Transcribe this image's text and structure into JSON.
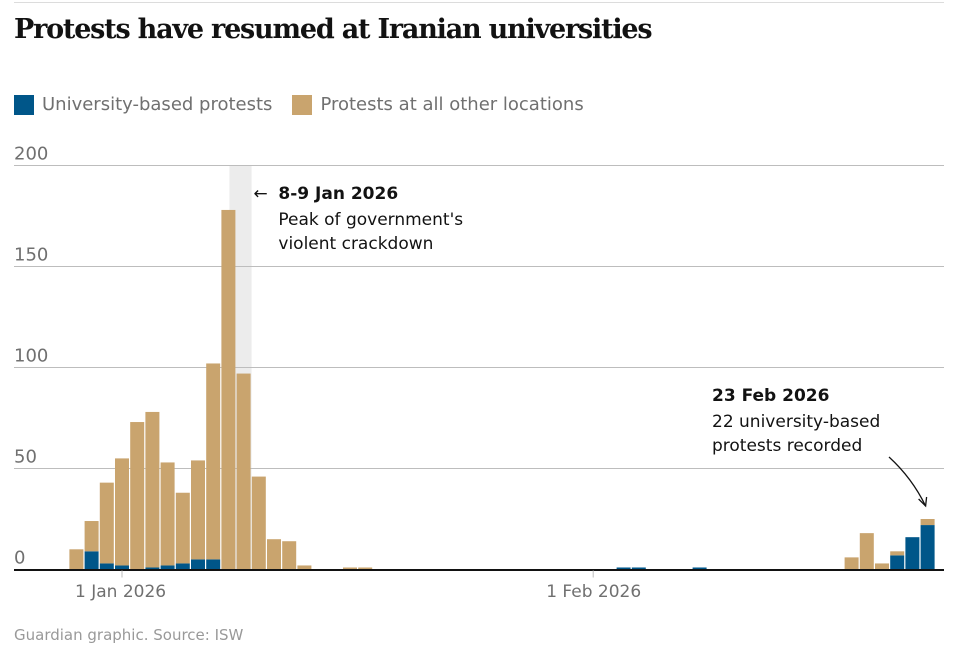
{
  "title": "Protests have resumed at Iranian universities",
  "legend": [
    {
      "key": "university",
      "label": "University-based protests",
      "color": "#005689"
    },
    {
      "key": "other",
      "label": "Protests at all other locations",
      "color": "#c9a46e"
    }
  ],
  "source": "Guardian graphic. Source: ISW",
  "chart_data": {
    "type": "bar",
    "stacked": true,
    "title": "Protests have resumed at Iranian universities",
    "xlabel": "",
    "ylabel": "",
    "ylim": [
      0,
      200
    ],
    "yticks": [
      0,
      50,
      100,
      150,
      200
    ],
    "grid": true,
    "legend_position": "top-left",
    "x_range": [
      "29 Dec 2025",
      "23 Feb 2026"
    ],
    "xticks": [
      {
        "date": "2026-01-01",
        "label": "1 Jan 2026"
      },
      {
        "date": "2026-02-01",
        "label": "1 Feb 2026"
      }
    ],
    "highlight": {
      "dates": [
        "2026-01-08",
        "2026-01-09"
      ],
      "color": "#ececec"
    },
    "series": [
      {
        "name": "University-based protests",
        "color": "#005689"
      },
      {
        "name": "Protests at all other locations",
        "color": "#c9a46e"
      }
    ],
    "points": [
      {
        "date": "2025-12-29",
        "university": 0,
        "other": 10
      },
      {
        "date": "2025-12-30",
        "university": 9,
        "other": 15
      },
      {
        "date": "2025-12-31",
        "university": 3,
        "other": 40
      },
      {
        "date": "2026-01-01",
        "university": 2,
        "other": 53
      },
      {
        "date": "2026-01-02",
        "university": 0,
        "other": 73
      },
      {
        "date": "2026-01-03",
        "university": 1,
        "other": 77
      },
      {
        "date": "2026-01-04",
        "university": 2,
        "other": 51
      },
      {
        "date": "2026-01-05",
        "university": 3,
        "other": 35
      },
      {
        "date": "2026-01-06",
        "university": 5,
        "other": 49
      },
      {
        "date": "2026-01-07",
        "university": 5,
        "other": 97
      },
      {
        "date": "2026-01-08",
        "university": 0,
        "other": 178
      },
      {
        "date": "2026-01-09",
        "university": 0,
        "other": 97
      },
      {
        "date": "2026-01-10",
        "university": 0,
        "other": 46
      },
      {
        "date": "2026-01-11",
        "university": 0,
        "other": 15
      },
      {
        "date": "2026-01-12",
        "university": 0,
        "other": 14
      },
      {
        "date": "2026-01-13",
        "university": 0,
        "other": 2
      },
      {
        "date": "2026-01-16",
        "university": 0,
        "other": 1
      },
      {
        "date": "2026-01-17",
        "university": 0,
        "other": 1
      },
      {
        "date": "2026-02-03",
        "university": 1,
        "other": 0
      },
      {
        "date": "2026-02-04",
        "university": 1,
        "other": 0
      },
      {
        "date": "2026-02-08",
        "university": 1,
        "other": 0
      },
      {
        "date": "2026-02-18",
        "university": 0,
        "other": 6
      },
      {
        "date": "2026-02-19",
        "university": 0,
        "other": 18
      },
      {
        "date": "2026-02-20",
        "university": 0,
        "other": 3
      },
      {
        "date": "2026-02-21",
        "university": 7,
        "other": 2
      },
      {
        "date": "2026-02-22",
        "university": 16,
        "other": 0
      },
      {
        "date": "2026-02-23",
        "university": 22,
        "other": 3
      }
    ],
    "annotations": [
      {
        "id": "crackdown",
        "date": "2026-01-08",
        "arrow": "←",
        "title": "8-9 Jan 2026",
        "lines": [
          "Peak of government's",
          "violent crackdown"
        ]
      },
      {
        "id": "feb23",
        "date": "2026-02-23",
        "title": "23 Feb 2026",
        "lines": [
          "22 university-based",
          "protests recorded"
        ]
      }
    ]
  }
}
